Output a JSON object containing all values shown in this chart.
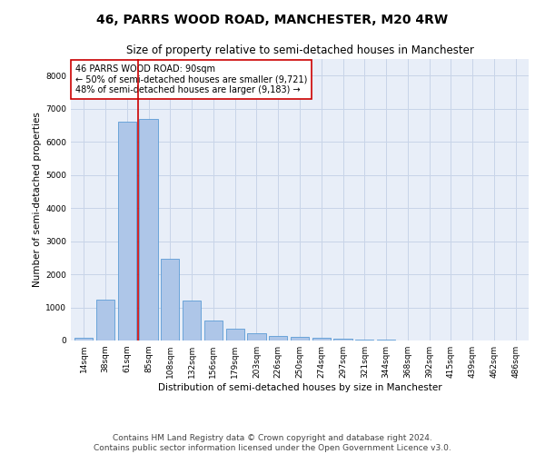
{
  "title": "46, PARRS WOOD ROAD, MANCHESTER, M20 4RW",
  "subtitle": "Size of property relative to semi-detached houses in Manchester",
  "xlabel": "Distribution of semi-detached houses by size in Manchester",
  "ylabel": "Number of semi-detached properties",
  "footer_line1": "Contains HM Land Registry data © Crown copyright and database right 2024.",
  "footer_line2": "Contains public sector information licensed under the Open Government Licence v3.0.",
  "categories": [
    "14sqm",
    "38sqm",
    "61sqm",
    "85sqm",
    "108sqm",
    "132sqm",
    "156sqm",
    "179sqm",
    "203sqm",
    "226sqm",
    "250sqm",
    "274sqm",
    "297sqm",
    "321sqm",
    "344sqm",
    "368sqm",
    "392sqm",
    "415sqm",
    "439sqm",
    "462sqm",
    "486sqm"
  ],
  "values": [
    70,
    1230,
    6600,
    6700,
    2480,
    1200,
    600,
    360,
    210,
    130,
    110,
    80,
    60,
    30,
    20,
    10,
    5,
    3,
    2,
    1,
    1
  ],
  "bar_color": "#aec6e8",
  "bar_edge_color": "#5b9bd5",
  "property_bin_index": 3,
  "annotation_text_line1": "46 PARRS WOOD ROAD: 90sqm",
  "annotation_text_line2": "← 50% of semi-detached houses are smaller (9,721)",
  "annotation_text_line3": "48% of semi-detached houses are larger (9,183) →",
  "vline_color": "#cc0000",
  "annotation_box_edge_color": "#cc0000",
  "ylim": [
    0,
    8500
  ],
  "yticks": [
    0,
    1000,
    2000,
    3000,
    4000,
    5000,
    6000,
    7000,
    8000
  ],
  "grid_color": "#c8d4e8",
  "bg_color": "#e8eef8",
  "title_fontsize": 10,
  "subtitle_fontsize": 8.5,
  "axis_label_fontsize": 7.5,
  "tick_fontsize": 6.5,
  "annotation_fontsize": 7,
  "footer_fontsize": 6.5,
  "ylabel_fontsize": 7.5
}
